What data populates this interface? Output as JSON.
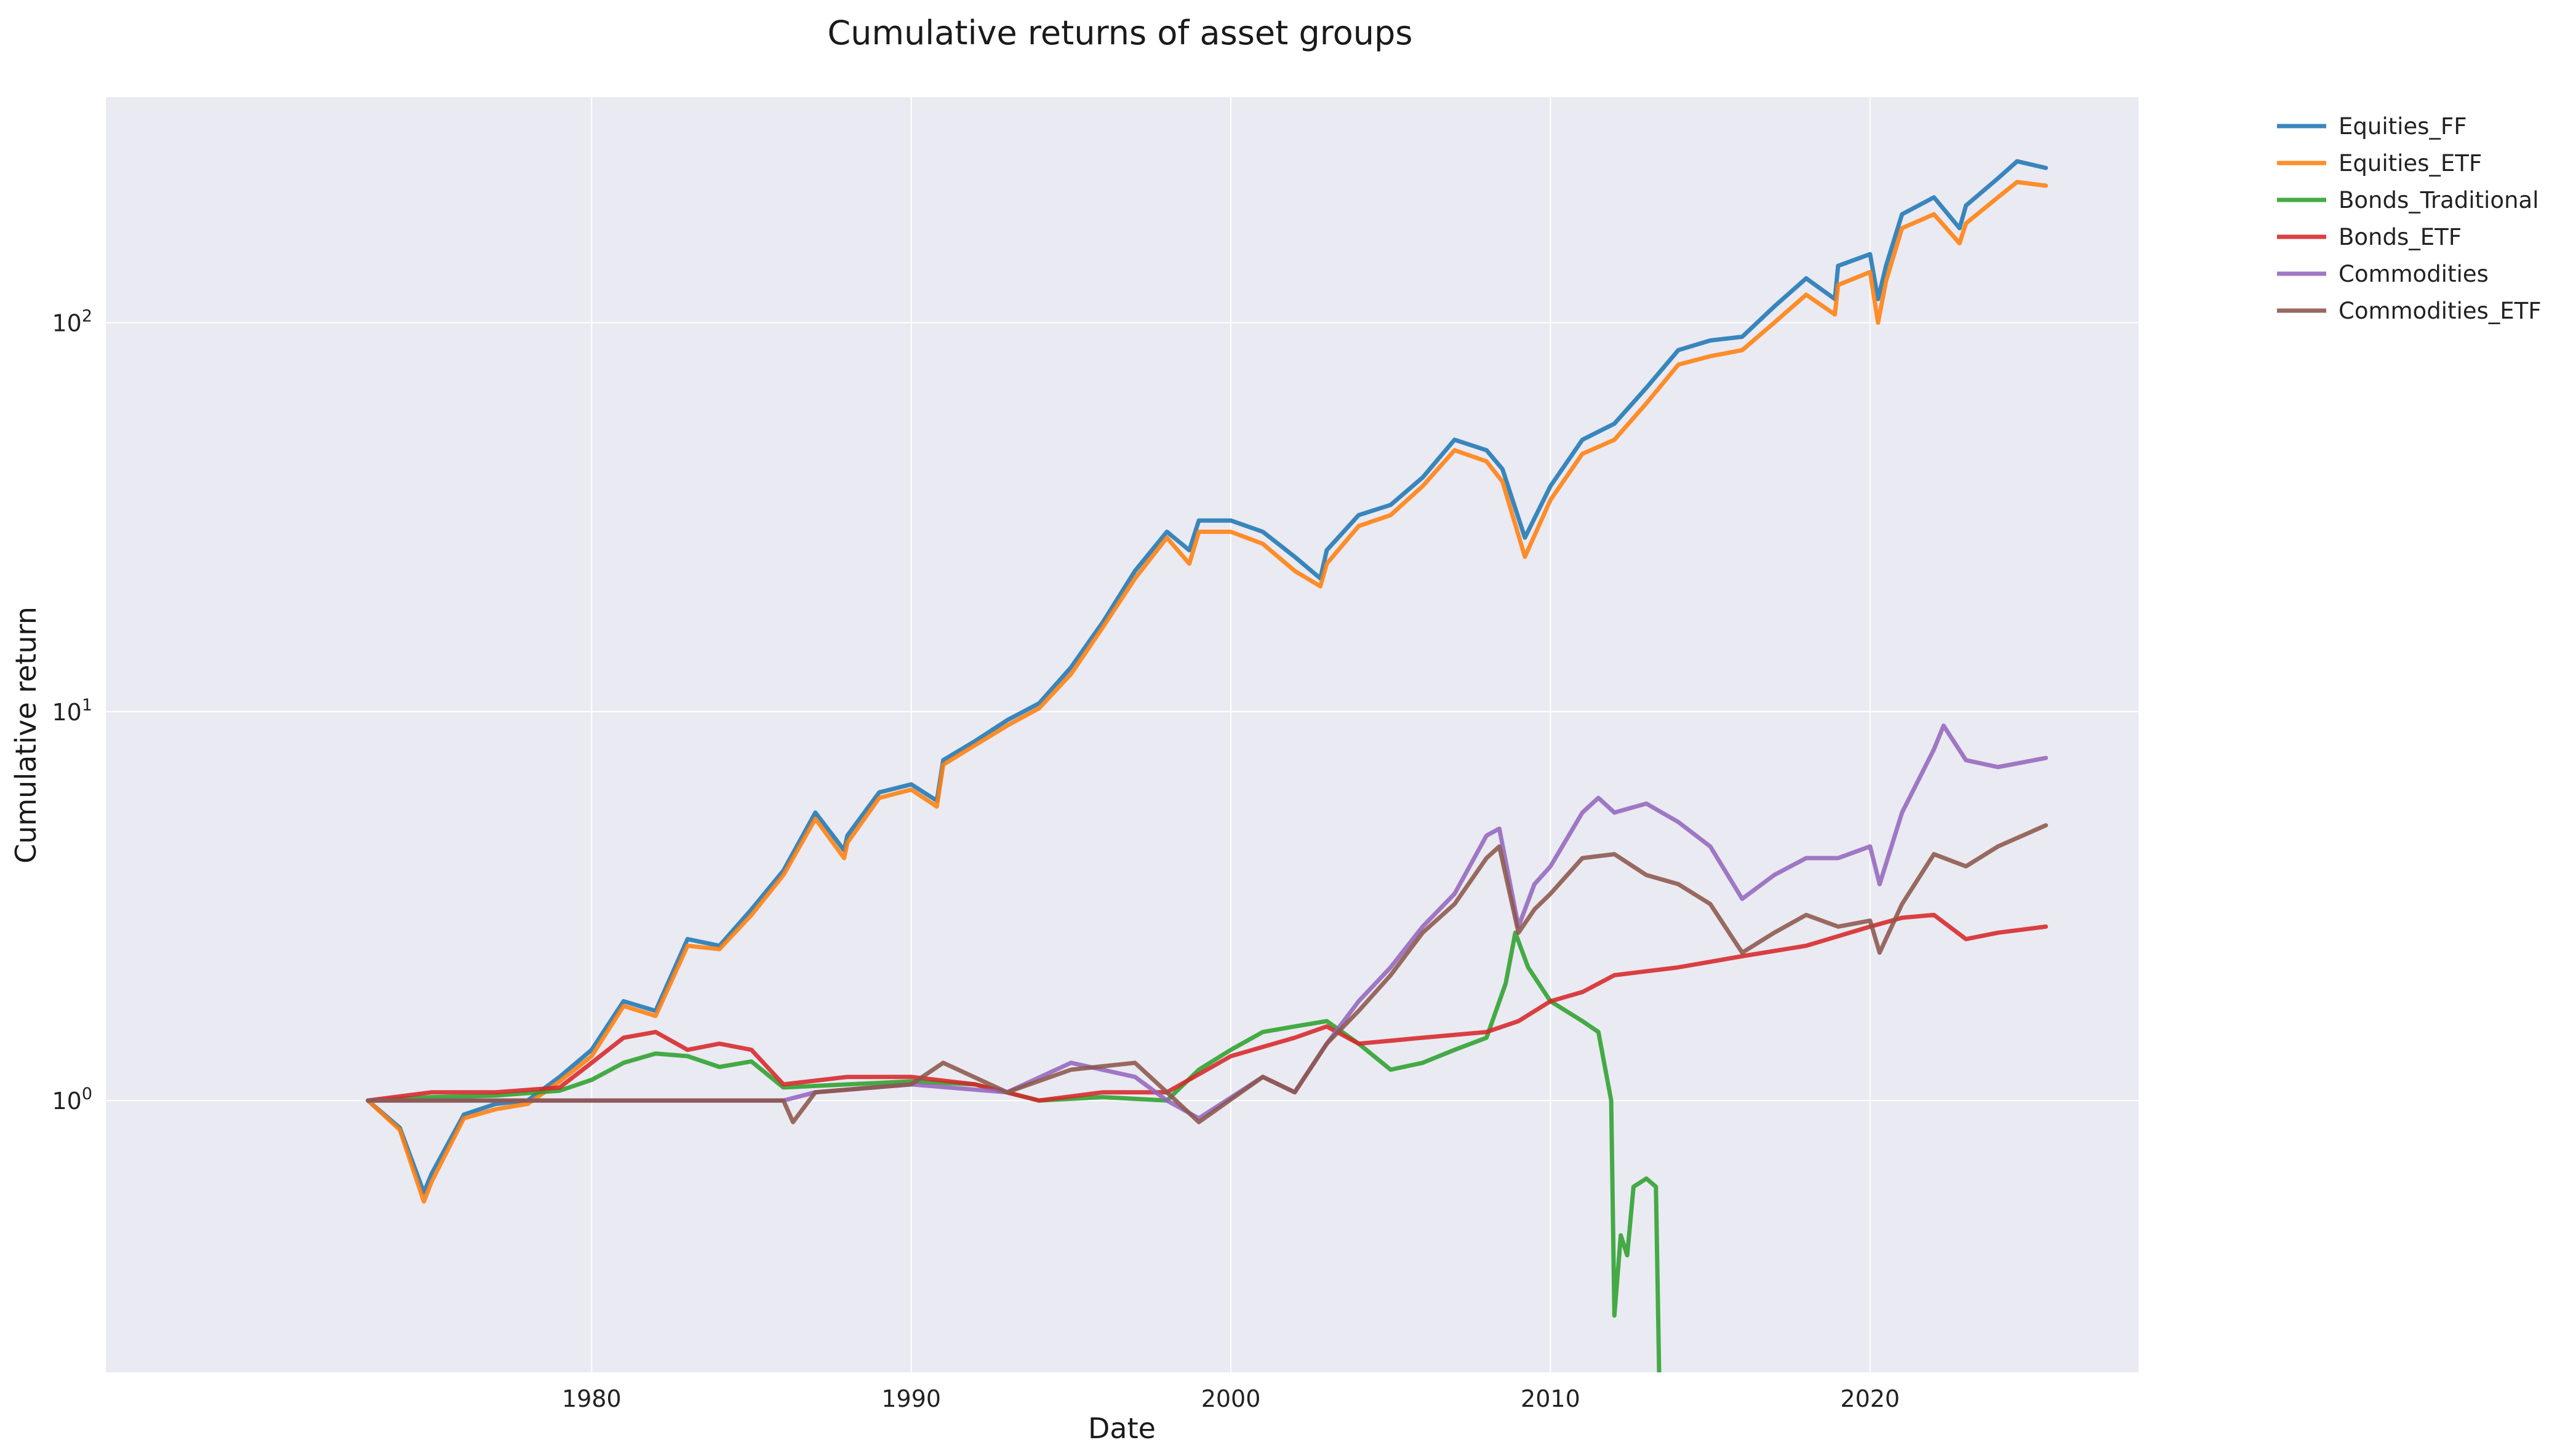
{
  "chart_data": {
    "type": "line",
    "title": "Cumulative returns of asset groups",
    "xlabel": "Date",
    "ylabel": "Cumulative return",
    "yscale": "log",
    "xlim": [
      1964.8,
      2028.4
    ],
    "ylim": [
      0.2,
      380
    ],
    "x_ticks": [
      1980,
      1990,
      2000,
      2010,
      2020
    ],
    "y_ticks": [
      {
        "value": 1,
        "base": "10",
        "exp": "0"
      },
      {
        "value": 10,
        "base": "10",
        "exp": "1"
      },
      {
        "value": 100,
        "base": "10",
        "exp": "2"
      }
    ],
    "grid": true,
    "legend_position": "outside-top-right",
    "series": [
      {
        "name": "Equities_FF",
        "color": "#1f77b4",
        "points": [
          [
            1973,
            1.0
          ],
          [
            1974,
            0.85
          ],
          [
            1974.75,
            0.58
          ],
          [
            1975,
            0.65
          ],
          [
            1976,
            0.92
          ],
          [
            1977,
            0.98
          ],
          [
            1978,
            1.0
          ],
          [
            1979,
            1.15
          ],
          [
            1980,
            1.35
          ],
          [
            1981,
            1.8
          ],
          [
            1982,
            1.7
          ],
          [
            1983,
            2.6
          ],
          [
            1984,
            2.5
          ],
          [
            1985,
            3.1
          ],
          [
            1986,
            3.9
          ],
          [
            1987,
            5.5
          ],
          [
            1987.9,
            4.4
          ],
          [
            1988,
            4.8
          ],
          [
            1989,
            6.2
          ],
          [
            1990,
            6.5
          ],
          [
            1990.8,
            5.9
          ],
          [
            1991,
            7.5
          ],
          [
            1992,
            8.4
          ],
          [
            1993,
            9.5
          ],
          [
            1994,
            10.5
          ],
          [
            1995,
            13
          ],
          [
            1996,
            17
          ],
          [
            1997,
            23
          ],
          [
            1998,
            29
          ],
          [
            1998.7,
            26
          ],
          [
            1999,
            31
          ],
          [
            2000,
            31
          ],
          [
            2001,
            29
          ],
          [
            2002,
            25
          ],
          [
            2002.8,
            22
          ],
          [
            2003,
            26
          ],
          [
            2004,
            32
          ],
          [
            2005,
            34
          ],
          [
            2006,
            40
          ],
          [
            2007,
            50
          ],
          [
            2008,
            47
          ],
          [
            2008.5,
            42
          ],
          [
            2009.2,
            28
          ],
          [
            2010,
            38
          ],
          [
            2011,
            50
          ],
          [
            2012,
            55
          ],
          [
            2013,
            68
          ],
          [
            2014,
            85
          ],
          [
            2015,
            90
          ],
          [
            2016,
            92
          ],
          [
            2017,
            110
          ],
          [
            2018,
            130
          ],
          [
            2018.9,
            115
          ],
          [
            2019,
            140
          ],
          [
            2020,
            150
          ],
          [
            2020.25,
            115
          ],
          [
            2020.5,
            140
          ],
          [
            2021,
            190
          ],
          [
            2022,
            210
          ],
          [
            2022.8,
            175
          ],
          [
            2023,
            200
          ],
          [
            2024,
            235
          ],
          [
            2024.6,
            260
          ],
          [
            2025.5,
            250
          ]
        ]
      },
      {
        "name": "Equities_ETF",
        "color": "#ff7f0e",
        "points": [
          [
            1973,
            1.0
          ],
          [
            1974,
            0.84
          ],
          [
            1974.75,
            0.55
          ],
          [
            1975,
            0.62
          ],
          [
            1976,
            0.9
          ],
          [
            1977,
            0.95
          ],
          [
            1978,
            0.98
          ],
          [
            1979,
            1.12
          ],
          [
            1980,
            1.3
          ],
          [
            1981,
            1.75
          ],
          [
            1982,
            1.65
          ],
          [
            1983,
            2.5
          ],
          [
            1984,
            2.45
          ],
          [
            1985,
            3.0
          ],
          [
            1986,
            3.8
          ],
          [
            1987,
            5.3
          ],
          [
            1987.9,
            4.2
          ],
          [
            1988,
            4.6
          ],
          [
            1989,
            6.0
          ],
          [
            1990,
            6.3
          ],
          [
            1990.8,
            5.7
          ],
          [
            1991,
            7.3
          ],
          [
            1992,
            8.2
          ],
          [
            1993,
            9.2
          ],
          [
            1994,
            10.2
          ],
          [
            1995,
            12.5
          ],
          [
            1996,
            16.5
          ],
          [
            1997,
            22
          ],
          [
            1998,
            28
          ],
          [
            1998.7,
            24
          ],
          [
            1999,
            29
          ],
          [
            2000,
            29
          ],
          [
            2001,
            27
          ],
          [
            2002,
            23
          ],
          [
            2002.8,
            21
          ],
          [
            2003,
            24
          ],
          [
            2004,
            30
          ],
          [
            2005,
            32
          ],
          [
            2006,
            38
          ],
          [
            2007,
            47
          ],
          [
            2008,
            44
          ],
          [
            2008.5,
            39
          ],
          [
            2009.2,
            25
          ],
          [
            2010,
            35
          ],
          [
            2011,
            46
          ],
          [
            2012,
            50
          ],
          [
            2013,
            62
          ],
          [
            2014,
            78
          ],
          [
            2015,
            82
          ],
          [
            2016,
            85
          ],
          [
            2017,
            100
          ],
          [
            2018,
            118
          ],
          [
            2018.9,
            105
          ],
          [
            2019,
            125
          ],
          [
            2020,
            135
          ],
          [
            2020.25,
            100
          ],
          [
            2020.5,
            128
          ],
          [
            2021,
            175
          ],
          [
            2022,
            190
          ],
          [
            2022.8,
            160
          ],
          [
            2023,
            180
          ],
          [
            2024,
            210
          ],
          [
            2024.6,
            230
          ],
          [
            2025.5,
            225
          ]
        ]
      },
      {
        "name": "Bonds_Traditional",
        "color": "#2ca02c",
        "points": [
          [
            1973,
            1.0
          ],
          [
            1975,
            1.02
          ],
          [
            1977,
            1.03
          ],
          [
            1979,
            1.06
          ],
          [
            1980,
            1.13
          ],
          [
            1981,
            1.25
          ],
          [
            1982,
            1.32
          ],
          [
            1983,
            1.3
          ],
          [
            1984,
            1.22
          ],
          [
            1985,
            1.26
          ],
          [
            1986,
            1.08
          ],
          [
            1988,
            1.1
          ],
          [
            1990,
            1.12
          ],
          [
            1992,
            1.1
          ],
          [
            1994,
            1.0
          ],
          [
            1996,
            1.02
          ],
          [
            1998,
            1.0
          ],
          [
            1999,
            1.2
          ],
          [
            2000,
            1.35
          ],
          [
            2001,
            1.5
          ],
          [
            2002,
            1.55
          ],
          [
            2003,
            1.6
          ],
          [
            2004,
            1.4
          ],
          [
            2005,
            1.2
          ],
          [
            2006,
            1.25
          ],
          [
            2007,
            1.35
          ],
          [
            2008,
            1.45
          ],
          [
            2008.6,
            2.0
          ],
          [
            2008.9,
            2.7
          ],
          [
            2009.3,
            2.2
          ],
          [
            2010,
            1.8
          ],
          [
            2011,
            1.6
          ],
          [
            2011.5,
            1.5
          ],
          [
            2011.9,
            1.0
          ],
          [
            2012,
            0.28
          ],
          [
            2012.2,
            0.45
          ],
          [
            2012.4,
            0.4
          ],
          [
            2012.6,
            0.6
          ],
          [
            2013,
            0.63
          ],
          [
            2013.3,
            0.6
          ],
          [
            2013.4,
            0.2
          ]
        ]
      },
      {
        "name": "Bonds_ETF",
        "color": "#d62728",
        "points": [
          [
            1973,
            1.0
          ],
          [
            1975,
            1.05
          ],
          [
            1977,
            1.05
          ],
          [
            1979,
            1.08
          ],
          [
            1980,
            1.25
          ],
          [
            1981,
            1.45
          ],
          [
            1982,
            1.5
          ],
          [
            1983,
            1.35
          ],
          [
            1984,
            1.4
          ],
          [
            1985,
            1.35
          ],
          [
            1986,
            1.1
          ],
          [
            1988,
            1.15
          ],
          [
            1990,
            1.15
          ],
          [
            1992,
            1.1
          ],
          [
            1994,
            1.0
          ],
          [
            1996,
            1.05
          ],
          [
            1998,
            1.05
          ],
          [
            2000,
            1.3
          ],
          [
            2002,
            1.45
          ],
          [
            2003,
            1.55
          ],
          [
            2004,
            1.4
          ],
          [
            2006,
            1.45
          ],
          [
            2008,
            1.5
          ],
          [
            2009,
            1.6
          ],
          [
            2010,
            1.8
          ],
          [
            2011,
            1.9
          ],
          [
            2012,
            2.1
          ],
          [
            2014,
            2.2
          ],
          [
            2016,
            2.35
          ],
          [
            2018,
            2.5
          ],
          [
            2020,
            2.8
          ],
          [
            2021,
            2.95
          ],
          [
            2022,
            3.0
          ],
          [
            2023,
            2.6
          ],
          [
            2024,
            2.7
          ],
          [
            2025.5,
            2.8
          ]
        ]
      },
      {
        "name": "Commodities",
        "color": "#9467bd",
        "points": [
          [
            1973,
            1.0
          ],
          [
            1986,
            1.0
          ],
          [
            1987,
            1.05
          ],
          [
            1990,
            1.1
          ],
          [
            1993,
            1.05
          ],
          [
            1995,
            1.25
          ],
          [
            1997,
            1.15
          ],
          [
            1998,
            1.0
          ],
          [
            1999,
            0.9
          ],
          [
            2001,
            1.15
          ],
          [
            2002,
            1.05
          ],
          [
            2003,
            1.4
          ],
          [
            2004,
            1.8
          ],
          [
            2005,
            2.2
          ],
          [
            2006,
            2.8
          ],
          [
            2007,
            3.4
          ],
          [
            2008,
            4.8
          ],
          [
            2008.4,
            5.0
          ],
          [
            2009,
            2.8
          ],
          [
            2009.5,
            3.6
          ],
          [
            2010,
            4.0
          ],
          [
            2011,
            5.5
          ],
          [
            2011.5,
            6.0
          ],
          [
            2012,
            5.5
          ],
          [
            2013,
            5.8
          ],
          [
            2014,
            5.2
          ],
          [
            2015,
            4.5
          ],
          [
            2016,
            3.3
          ],
          [
            2017,
            3.8
          ],
          [
            2018,
            4.2
          ],
          [
            2019,
            4.2
          ],
          [
            2020,
            4.5
          ],
          [
            2020.3,
            3.6
          ],
          [
            2021,
            5.5
          ],
          [
            2022,
            8.0
          ],
          [
            2022.3,
            9.2
          ],
          [
            2023,
            7.5
          ],
          [
            2024,
            7.2
          ],
          [
            2025.5,
            7.6
          ]
        ]
      },
      {
        "name": "Commodities_ETF",
        "color": "#8c564b",
        "points": [
          [
            1973,
            1.0
          ],
          [
            1986,
            1.0
          ],
          [
            1986.3,
            0.88
          ],
          [
            1987,
            1.05
          ],
          [
            1990,
            1.1
          ],
          [
            1991,
            1.25
          ],
          [
            1993,
            1.05
          ],
          [
            1995,
            1.2
          ],
          [
            1997,
            1.25
          ],
          [
            1998,
            1.05
          ],
          [
            1999,
            0.88
          ],
          [
            2001,
            1.15
          ],
          [
            2002,
            1.05
          ],
          [
            2003,
            1.4
          ],
          [
            2004,
            1.7
          ],
          [
            2005,
            2.1
          ],
          [
            2006,
            2.7
          ],
          [
            2007,
            3.2
          ],
          [
            2008,
            4.2
          ],
          [
            2008.4,
            4.5
          ],
          [
            2009,
            2.7
          ],
          [
            2009.5,
            3.1
          ],
          [
            2010,
            3.4
          ],
          [
            2011,
            4.2
          ],
          [
            2012,
            4.3
          ],
          [
            2013,
            3.8
          ],
          [
            2014,
            3.6
          ],
          [
            2015,
            3.2
          ],
          [
            2016,
            2.4
          ],
          [
            2017,
            2.7
          ],
          [
            2018,
            3.0
          ],
          [
            2019,
            2.8
          ],
          [
            2020,
            2.9
          ],
          [
            2020.3,
            2.4
          ],
          [
            2021,
            3.2
          ],
          [
            2022,
            4.3
          ],
          [
            2023,
            4.0
          ],
          [
            2024,
            4.5
          ],
          [
            2025.5,
            5.1
          ]
        ]
      }
    ]
  }
}
